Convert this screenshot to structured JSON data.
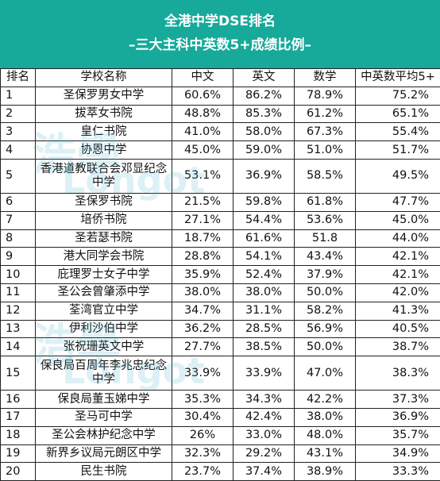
{
  "header": {
    "title": "全港中学DSE排名",
    "subtitle": "–三大主科中英数5+成绩比例–"
  },
  "table": {
    "columns": [
      "排名",
      "学校名称",
      "中文",
      "英文",
      "数学",
      "中英数平均5+"
    ],
    "rows": [
      [
        "1",
        "圣保罗男女中学",
        "60.6%",
        "86.2%",
        "78.9%",
        "75.2%"
      ],
      [
        "2",
        "拔萃女书院",
        "48.8%",
        "85.3%",
        "61.2%",
        "65.1%"
      ],
      [
        "3",
        "皇仁书院",
        "41.0%",
        "58.0%",
        "67.3%",
        "55.4%"
      ],
      [
        "4",
        "协恩中学",
        "45.0%",
        "59.0%",
        "51.0%",
        "51.7%"
      ],
      [
        "5",
        "香港道教联合会邓显纪念中学",
        "53.1%",
        "36.9%",
        "58.5%",
        "49.5%"
      ],
      [
        "6",
        "圣保罗书院",
        "21.5%",
        "59.8%",
        "61.8%",
        "47.7%"
      ],
      [
        "7",
        "培侨书院",
        "27.1%",
        "54.4%",
        "53.6%",
        "45.0%"
      ],
      [
        "8",
        "圣若瑟书院",
        "18.7%",
        "61.6%",
        "51.8",
        "44.0%"
      ],
      [
        "9",
        "港大同学会书院",
        "28.8%",
        "54.1%",
        "43.4%",
        "42.1%"
      ],
      [
        "10",
        "庇理罗士女子中学",
        "35.9%",
        "52.4%",
        "37.9%",
        "42.1%"
      ],
      [
        "11",
        "圣公会曾肇添中学",
        "38.0%",
        "38.0%",
        "50.0%",
        "42.0%"
      ],
      [
        "12",
        "荃湾官立中学",
        "34.7%",
        "31.1%",
        "58.2%",
        "41.3%"
      ],
      [
        "13",
        "伊利沙伯中学",
        "36.2%",
        "28.5%",
        "56.9%",
        "40.5%"
      ],
      [
        "14",
        "张祝珊英文中学",
        "27.7%",
        "38.5%",
        "50.0%",
        "38.7%"
      ],
      [
        "15",
        "保良局百周年李兆忠纪念中学",
        "33.9%",
        "33.9%",
        "47.0%",
        "38.3%"
      ],
      [
        "16",
        "保良局董玉娣中学",
        "35.3%",
        "34.3%",
        "42.2%",
        "37.3%"
      ],
      [
        "17",
        "圣马可中学",
        "30.4%",
        "42.4%",
        "38.0%",
        "36.9%"
      ],
      [
        "18",
        "圣公会林护纪念中学",
        "26%",
        "33.0%",
        "48.0%",
        "35.7%"
      ],
      [
        "19",
        "新界乡议局元朗区中学",
        "32.3%",
        "29.2%",
        "43.1%",
        "34.9%"
      ],
      [
        "20",
        "民生书院",
        "23.7%",
        "37.4%",
        "38.9%",
        "33.3%"
      ]
    ]
  },
  "watermark": {
    "cn": "浩學",
    "en": "Longot",
    "suffix": "one",
    "sub": "Academy",
    "color": "#3caac8"
  }
}
